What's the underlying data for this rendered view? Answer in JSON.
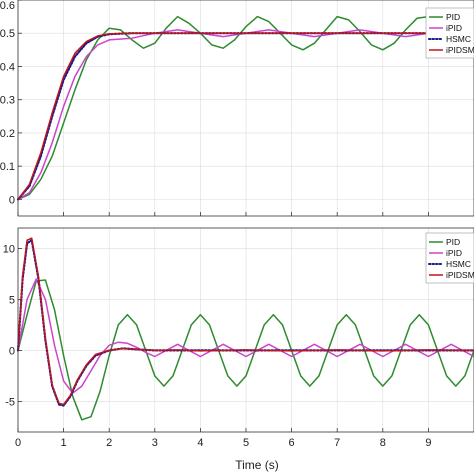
{
  "chart_data": [
    {
      "type": "line",
      "title": "",
      "xlabel": "",
      "ylabel": "",
      "xlim": [
        0,
        10
      ],
      "ylim": [
        -0.05,
        0.6
      ],
      "grid": true,
      "legend_position": "top-right",
      "x_ticks": [
        "0",
        "1",
        "2",
        "3",
        "4",
        "5",
        "6",
        "7",
        "8",
        "9"
      ],
      "y_ticks": [
        {
          "value": 0,
          "label": "0"
        },
        {
          "value": 0.1,
          "label": "0.1"
        },
        {
          "value": 0.2,
          "label": "0.2"
        },
        {
          "value": 0.3,
          "label": "0.3"
        },
        {
          "value": 0.4,
          "label": "0.4"
        },
        {
          "value": 0.5,
          "label": "0.5"
        },
        {
          "value": 0.6,
          "label": "0.6"
        }
      ],
      "series": [
        {
          "name": "PID",
          "color": "#2e8b2e",
          "style": "solid",
          "x": [
            0,
            0.25,
            0.5,
            0.75,
            1.0,
            1.25,
            1.5,
            1.75,
            2.0,
            2.25,
            2.5,
            2.75,
            3.0,
            3.25,
            3.5,
            3.75,
            4.0,
            4.25,
            4.5,
            4.75,
            5.0,
            5.25,
            5.5,
            5.75,
            6.0,
            6.25,
            6.5,
            6.75,
            7.0,
            7.25,
            7.5,
            7.75,
            8.0,
            8.25,
            8.5,
            8.75,
            9.0,
            9.25,
            9.5,
            9.75,
            10.0
          ],
          "y": [
            0,
            0.015,
            0.06,
            0.13,
            0.23,
            0.33,
            0.42,
            0.48,
            0.515,
            0.51,
            0.48,
            0.455,
            0.47,
            0.515,
            0.55,
            0.53,
            0.5,
            0.465,
            0.455,
            0.48,
            0.52,
            0.55,
            0.535,
            0.5,
            0.465,
            0.45,
            0.47,
            0.51,
            0.55,
            0.54,
            0.505,
            0.465,
            0.45,
            0.47,
            0.51,
            0.545,
            0.55,
            0.515,
            0.475,
            0.45,
            0.46
          ]
        },
        {
          "name": "iPID",
          "color": "#cc44cc",
          "style": "solid",
          "x": [
            0,
            0.25,
            0.5,
            0.75,
            1.0,
            1.25,
            1.5,
            1.75,
            2.0,
            2.5,
            3.0,
            3.5,
            4.0,
            4.5,
            5.0,
            5.5,
            6.0,
            6.5,
            7.0,
            7.5,
            8.0,
            8.5,
            9.0,
            9.5,
            10.0
          ],
          "y": [
            0,
            0.02,
            0.08,
            0.17,
            0.28,
            0.37,
            0.43,
            0.465,
            0.48,
            0.485,
            0.5,
            0.51,
            0.5,
            0.49,
            0.5,
            0.51,
            0.5,
            0.49,
            0.5,
            0.51,
            0.5,
            0.49,
            0.5,
            0.51,
            0.5
          ]
        },
        {
          "name": "HSMC",
          "color": "#1a1a8c",
          "style": "dotted",
          "x": [
            0,
            0.25,
            0.5,
            0.75,
            1.0,
            1.25,
            1.5,
            1.75,
            2.0,
            2.5,
            3.0,
            4.0,
            5.0,
            6.0,
            7.0,
            8.0,
            9.0,
            10.0
          ],
          "y": [
            0,
            0.04,
            0.13,
            0.25,
            0.36,
            0.43,
            0.47,
            0.49,
            0.497,
            0.5,
            0.5,
            0.5,
            0.5,
            0.5,
            0.5,
            0.5,
            0.5,
            0.5
          ]
        },
        {
          "name": "iPIDSMC",
          "color": "#c0141c",
          "style": "solid",
          "x": [
            0,
            0.25,
            0.5,
            0.75,
            1.0,
            1.25,
            1.5,
            1.75,
            2.0,
            2.5,
            3.0,
            4.0,
            5.0,
            6.0,
            7.0,
            8.0,
            9.0,
            10.0
          ],
          "y": [
            0,
            0.045,
            0.14,
            0.26,
            0.37,
            0.44,
            0.475,
            0.492,
            0.498,
            0.5,
            0.5,
            0.5,
            0.5,
            0.5,
            0.5,
            0.5,
            0.5,
            0.5
          ]
        }
      ]
    },
    {
      "type": "line",
      "title": "",
      "xlabel": "Time (s)",
      "ylabel": "",
      "xlim": [
        0,
        10
      ],
      "ylim": [
        -8,
        12
      ],
      "grid": true,
      "legend_position": "top-right",
      "x_ticks": [
        "0",
        "1",
        "2",
        "3",
        "4",
        "5",
        "6",
        "7",
        "8",
        "9"
      ],
      "y_ticks": [
        {
          "value": -5,
          "label": "-5"
        },
        {
          "value": 0,
          "label": "0"
        },
        {
          "value": 5,
          "label": "5"
        },
        {
          "value": 10,
          "label": "10"
        }
      ],
      "series": [
        {
          "name": "PID",
          "color": "#2e8b2e",
          "style": "solid",
          "x": [
            0,
            0.2,
            0.4,
            0.6,
            0.8,
            1.0,
            1.2,
            1.4,
            1.6,
            1.8,
            2.0,
            2.2,
            2.4,
            2.6,
            2.8,
            3.0,
            3.2,
            3.4,
            3.6,
            3.8,
            4.0,
            4.2,
            4.4,
            4.6,
            4.8,
            5.0,
            5.2,
            5.4,
            5.6,
            5.8,
            6.0,
            6.2,
            6.4,
            6.6,
            6.8,
            7.0,
            7.2,
            7.4,
            7.6,
            7.8,
            8.0,
            8.2,
            8.4,
            8.6,
            8.8,
            9.0,
            9.2,
            9.4,
            9.6,
            9.8,
            10.0
          ],
          "y": [
            0,
            3.5,
            6.8,
            6.9,
            4.0,
            -0.5,
            -4.5,
            -6.8,
            -6.5,
            -4.0,
            -0.5,
            2.5,
            3.5,
            2.5,
            0,
            -2.5,
            -3.5,
            -2.5,
            0,
            2.5,
            3.5,
            2.5,
            0,
            -2.5,
            -3.5,
            -2.5,
            0,
            2.5,
            3.5,
            2.5,
            0,
            -2.5,
            -3.5,
            -2.5,
            0,
            2.5,
            3.5,
            2.5,
            0,
            -2.5,
            -3.5,
            -2.5,
            0,
            2.5,
            3.5,
            2.5,
            0,
            -2.5,
            -3.5,
            -2.5,
            0
          ]
        },
        {
          "name": "iPID",
          "color": "#cc44cc",
          "style": "solid",
          "x": [
            0,
            0.2,
            0.4,
            0.6,
            0.8,
            1.0,
            1.2,
            1.4,
            1.6,
            1.8,
            2.0,
            2.2,
            2.4,
            2.6,
            2.8,
            3.0,
            3.5,
            4.0,
            4.5,
            5.0,
            5.5,
            6.0,
            6.5,
            7.0,
            7.5,
            8.0,
            8.5,
            9.0,
            9.5,
            10.0
          ],
          "y": [
            0,
            5.0,
            7.0,
            5.0,
            0.5,
            -3.0,
            -4.2,
            -3.5,
            -2.0,
            -0.5,
            0.5,
            0.8,
            0.7,
            0.3,
            -0.2,
            -0.6,
            0.6,
            -0.6,
            0.6,
            -0.6,
            0.6,
            -0.6,
            0.6,
            -0.6,
            0.6,
            -0.6,
            0.6,
            -0.6,
            0.6,
            -0.6
          ]
        },
        {
          "name": "HSMC",
          "color": "#1a1a8c",
          "style": "dotted",
          "x": [
            0,
            0.1,
            0.2,
            0.3,
            0.45,
            0.6,
            0.75,
            0.9,
            1.0,
            1.15,
            1.3,
            1.5,
            1.7,
            2.0,
            2.3,
            2.6,
            3.0,
            3.5,
            4.0,
            5.0,
            6.0,
            7.0,
            8.0,
            9.0,
            10.0
          ],
          "y": [
            0,
            7.0,
            10.5,
            10.8,
            7.0,
            1.0,
            -3.5,
            -5.3,
            -5.4,
            -4.5,
            -3.0,
            -1.5,
            -0.5,
            0,
            0.2,
            0.1,
            0,
            0,
            0,
            0,
            0,
            0,
            0,
            0,
            0
          ]
        },
        {
          "name": "iPIDSMC",
          "color": "#c0141c",
          "style": "solid",
          "x": [
            0,
            0.1,
            0.2,
            0.3,
            0.45,
            0.6,
            0.75,
            0.9,
            1.0,
            1.15,
            1.3,
            1.5,
            1.7,
            2.0,
            2.3,
            2.6,
            3.0,
            3.5,
            4.0,
            5.0,
            6.0,
            7.0,
            8.0,
            9.0,
            10.0
          ],
          "y": [
            0,
            7.3,
            10.8,
            11.0,
            7.2,
            1.2,
            -3.4,
            -5.2,
            -5.3,
            -4.4,
            -2.9,
            -1.4,
            -0.4,
            0,
            0.2,
            0.1,
            0,
            0.05,
            -0.05,
            0.05,
            -0.05,
            0.05,
            -0.05,
            0.05,
            0
          ]
        }
      ]
    }
  ]
}
